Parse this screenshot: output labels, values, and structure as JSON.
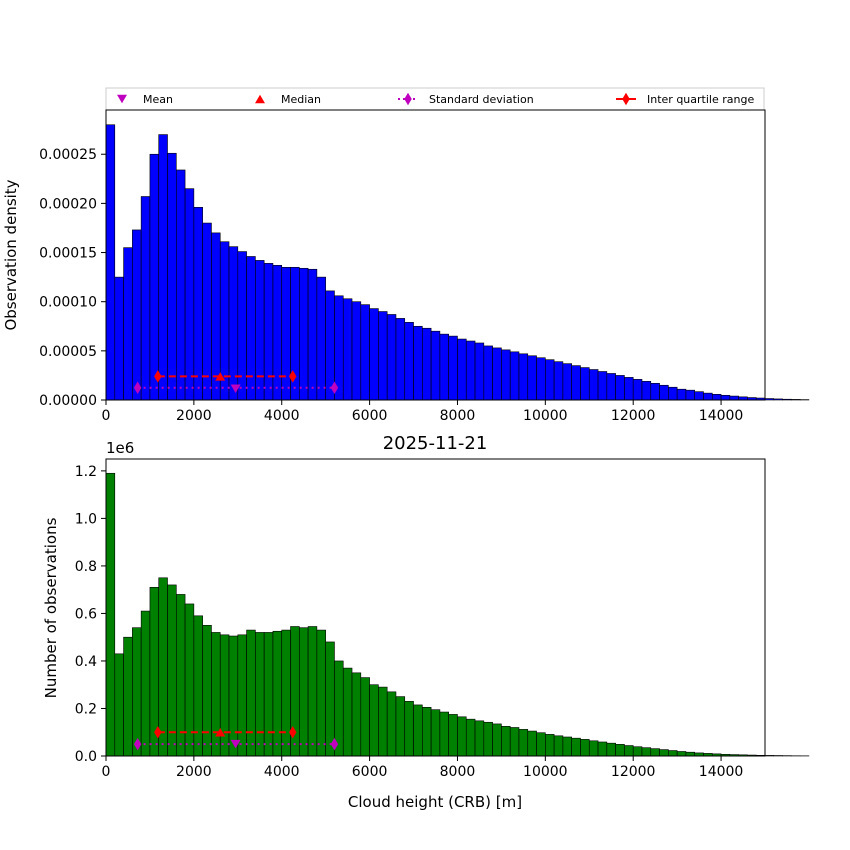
{
  "legend": {
    "placement": "top",
    "entries": [
      {
        "label": "Mean",
        "marker": "triangle-down",
        "color": "#bf00bf"
      },
      {
        "label": "Median",
        "marker": "triangle-up",
        "color": "#ff0000"
      },
      {
        "label": "Standard deviation",
        "marker": "diamond-dotted-line",
        "color": "#bf00bf"
      },
      {
        "label": "Inter quartile range",
        "marker": "diamond-solid-line",
        "color": "#ff0000"
      }
    ]
  },
  "chart_data": [
    {
      "type": "bar",
      "title": "",
      "xlabel": "",
      "ylabel": "Observation density",
      "color": "#0000ff",
      "edgecolor": "#000000",
      "bin_width": 200,
      "bin_start": 0,
      "xlim": [
        0,
        15000
      ],
      "ylim": [
        0,
        0.000295
      ],
      "xticks": [
        "0",
        "2000",
        "4000",
        "6000",
        "8000",
        "10000",
        "12000",
        "14000"
      ],
      "yticks": [
        "0.00000",
        "0.00005",
        "0.00010",
        "0.00015",
        "0.00020",
        "0.00025"
      ],
      "values": [
        0.00028,
        0.000125,
        0.000155,
        0.000173,
        0.000207,
        0.00025,
        0.00027,
        0.000251,
        0.000234,
        0.000215,
        0.000196,
        0.00018,
        0.00017,
        0.000161,
        0.000156,
        0.000151,
        0.000146,
        0.000142,
        0.000139,
        0.000137,
        0.000135,
        0.000135,
        0.000134,
        0.000133,
        0.000125,
        0.000111,
        0.000106,
        0.000103,
        0.0001,
        9.7e-05,
        9.3e-05,
        9e-05,
        8.7e-05,
        8.3e-05,
        7.9e-05,
        7.5e-05,
        7.3e-05,
        7e-05,
        6.7e-05,
        6.5e-05,
        6.2e-05,
        6e-05,
        5.8e-05,
        5.5e-05,
        5.3e-05,
        5.1e-05,
        4.9e-05,
        4.7e-05,
        4.5e-05,
        4.3e-05,
        4.1e-05,
        3.9e-05,
        3.7e-05,
        3.5e-05,
        3.3e-05,
        3.1e-05,
        2.9e-05,
        2.7e-05,
        2.5e-05,
        2.3e-05,
        2.1e-05,
        1.9e-05,
        1.7e-05,
        1.5e-05,
        1.3e-05,
        1.1e-05,
        1e-05,
        8.5e-06,
        7e-06,
        5.8e-06,
        4.8e-06,
        4e-06,
        3.2e-06,
        2.5e-06,
        2e-06,
        1.5e-06,
        1.1e-06,
        8e-07,
        6e-07,
        4e-07
      ],
      "stats": {
        "mean": {
          "x": 2950,
          "y": 1.15e-05
        },
        "median": {
          "x": 2600,
          "y": 2.4e-05
        },
        "std_range": {
          "x": [
            720,
            5200
          ],
          "y": 1.25e-05
        },
        "iqr_range": {
          "x": [
            1180,
            4250
          ],
          "y": 2.4e-05
        }
      }
    },
    {
      "type": "bar",
      "title": "2025-11-21",
      "xlabel": "Cloud height (CRB) [m]",
      "ylabel": "Number of observations",
      "scale_label": "1e6",
      "color": "#008000",
      "edgecolor": "#000000",
      "bin_width": 200,
      "bin_start": 0,
      "xlim": [
        0,
        15000
      ],
      "ylim": [
        0,
        1.25
      ],
      "xticks": [
        "0",
        "2000",
        "4000",
        "6000",
        "8000",
        "10000",
        "12000",
        "14000"
      ],
      "yticks": [
        "0.0",
        "0.2",
        "0.4",
        "0.6",
        "0.8",
        "1.0",
        "1.2"
      ],
      "values": [
        1.19,
        0.43,
        0.5,
        0.54,
        0.61,
        0.71,
        0.75,
        0.72,
        0.68,
        0.64,
        0.59,
        0.55,
        0.52,
        0.51,
        0.505,
        0.51,
        0.53,
        0.52,
        0.52,
        0.525,
        0.53,
        0.545,
        0.54,
        0.545,
        0.53,
        0.48,
        0.4,
        0.37,
        0.35,
        0.33,
        0.3,
        0.29,
        0.27,
        0.25,
        0.23,
        0.215,
        0.205,
        0.195,
        0.185,
        0.175,
        0.165,
        0.155,
        0.148,
        0.142,
        0.135,
        0.125,
        0.12,
        0.112,
        0.105,
        0.098,
        0.091,
        0.085,
        0.08,
        0.075,
        0.07,
        0.064,
        0.059,
        0.054,
        0.049,
        0.044,
        0.039,
        0.035,
        0.031,
        0.027,
        0.023,
        0.019,
        0.016,
        0.013,
        0.011,
        0.009,
        0.007,
        0.006,
        0.005,
        0.004,
        0.003,
        0.0025,
        0.002,
        0.0015,
        0.001,
        0.0008
      ],
      "stats": {
        "mean": {
          "x": 2950,
          "y": 0.05
        },
        "median": {
          "x": 2600,
          "y": 0.1
        },
        "std_range": {
          "x": [
            720,
            5200
          ],
          "y": 0.05
        },
        "iqr_range": {
          "x": [
            1180,
            4250
          ],
          "y": 0.1
        }
      }
    }
  ]
}
